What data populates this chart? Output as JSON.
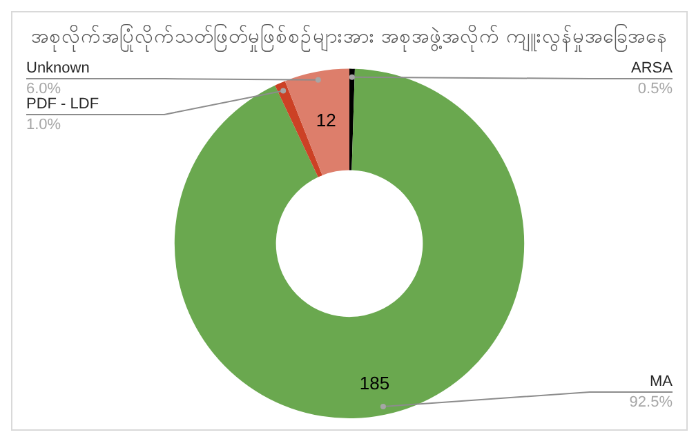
{
  "chart_data": {
    "type": "donut",
    "title": "အစုလိုက်အပြုံလိုက်သတ်ဖြတ်မှုဖြစ်စဉ်များအား အစုအဖွဲ့အလိုက် ကျူးလွန်မှုအခြေအနေ",
    "categories": [
      "ARSA",
      "MA",
      "PDF - LDF",
      "Unknown"
    ],
    "values": [
      1,
      185,
      2,
      12
    ],
    "colors": [
      "#000000",
      "#6aa84f",
      "#cc4125",
      "#dd7e6b"
    ],
    "value_labels": [
      null,
      "185",
      null,
      "12"
    ],
    "annotations": [
      "0.5%",
      "92.5%",
      "1.0%",
      "6.0%"
    ]
  }
}
